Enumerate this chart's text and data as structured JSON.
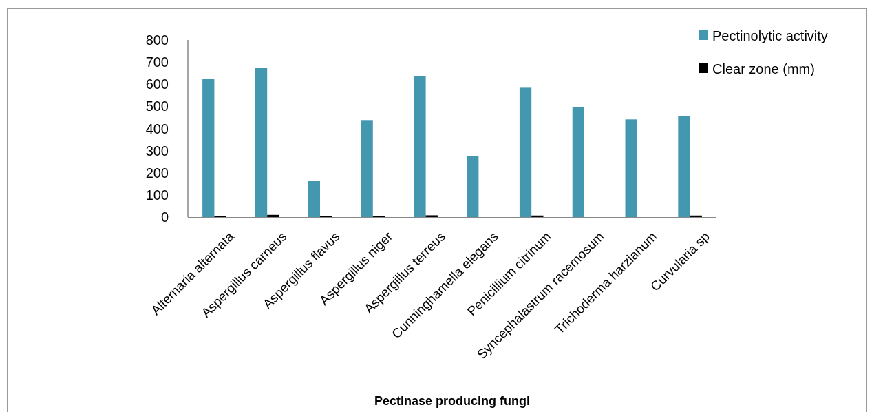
{
  "chart_data": {
    "type": "bar",
    "xlabel": "Pectinase producing fungi",
    "categories": [
      "Alternaria alternata",
      "Aspergillus carneus",
      "Aspergillus flavus",
      "Aspergillus niger",
      "Aspergillus terreus",
      "Cunninghamella elegans",
      "Penicillium citrinum",
      "Syncephalastrum racemosum",
      "Trichoderma harzianum",
      "Curvularia sp"
    ],
    "series": [
      {
        "name": "Pectinolytic activity",
        "color": "#4398b0",
        "values": [
          625,
          673,
          165,
          438,
          636,
          274,
          584,
          496,
          441,
          457
        ]
      },
      {
        "name": "Clear zone (mm)",
        "color": "#000000",
        "values": [
          6,
          10,
          4,
          6,
          8,
          0,
          7,
          0,
          0,
          7
        ]
      }
    ],
    "ylim": [
      0,
      800
    ],
    "yticks": [
      0,
      100,
      200,
      300,
      400,
      500,
      600,
      700,
      800
    ],
    "grid": false,
    "legend": "top right"
  }
}
